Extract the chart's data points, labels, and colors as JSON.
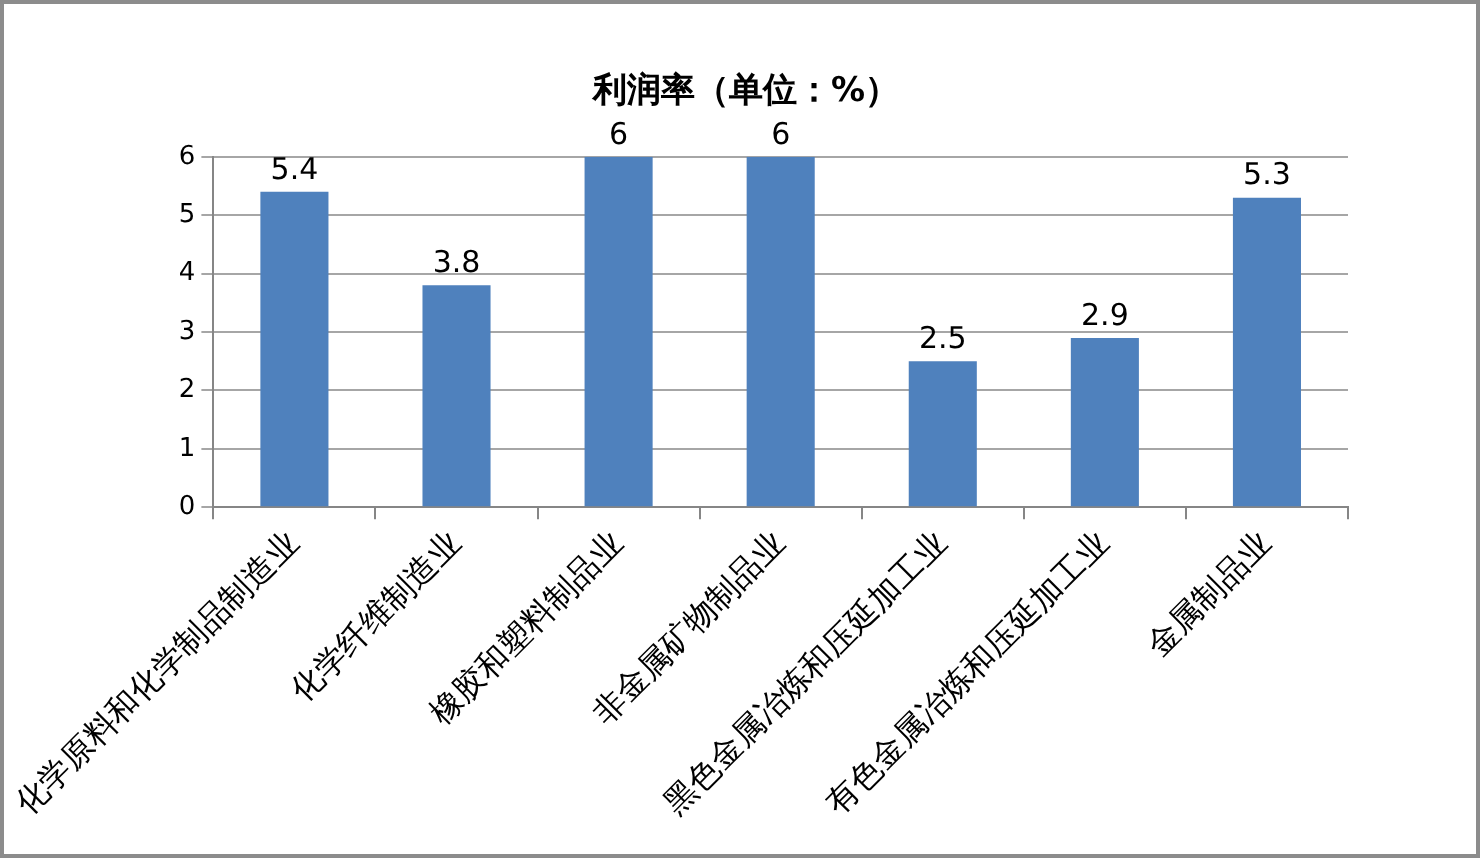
{
  "chart_data": {
    "type": "bar",
    "title": "利润率（单位：%）",
    "categories": [
      "化学原料和化学制品制造业",
      "化学纤维制造业",
      "橡胶和塑料制品业",
      "非金属矿物制品业",
      "黑色金属冶炼和压延加工业",
      "有色金属冶炼和压延加工业",
      "金属制品业"
    ],
    "values": [
      5.4,
      3.8,
      6,
      6,
      2.5,
      2.9,
      5.3
    ],
    "color": "#4f81bd",
    "ylim": [
      0,
      6
    ],
    "yticks": [
      0,
      1,
      2,
      3,
      4,
      5,
      6
    ],
    "grid": "y",
    "data_labels": true
  }
}
